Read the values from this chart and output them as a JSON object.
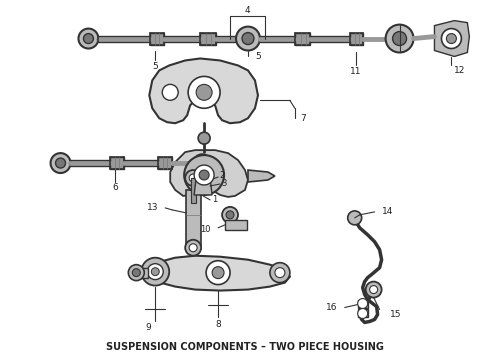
{
  "title": "SUSPENSION COMPONENTS – TWO PIECE HOUSING",
  "title_fontsize": 7.0,
  "title_color": "#222222",
  "bg_color": "#ffffff",
  "line_color": "#333333",
  "fig_width": 4.9,
  "fig_height": 3.6,
  "dpi": 100
}
